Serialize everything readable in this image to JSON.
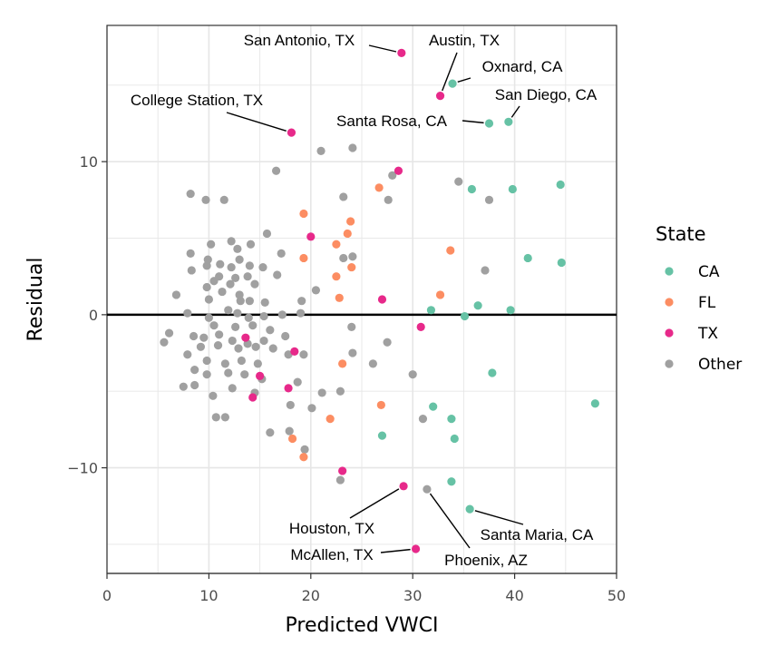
{
  "chart_data": {
    "type": "scatter",
    "title": "",
    "xlabel": "Predicted VWCI",
    "ylabel": "Residual",
    "xlim": [
      0,
      50
    ],
    "ylim": [
      -16.9,
      18.9
    ],
    "x_ticks": [
      0,
      10,
      20,
      30,
      40,
      50
    ],
    "y_ticks": [
      -10,
      0,
      10
    ],
    "x_tick_labels": [
      "0",
      "10",
      "20",
      "30",
      "40",
      "50"
    ],
    "y_tick_labels": [
      "−10",
      "0",
      "10"
    ],
    "grid": true,
    "reference_line_y": 0,
    "legend": {
      "title": "State",
      "position": "right",
      "entries": [
        {
          "name": "CA",
          "color": "#66c2a5"
        },
        {
          "name": "FL",
          "color": "#fc8d62"
        },
        {
          "name": "TX",
          "color": "#e7298a"
        },
        {
          "name": "Other",
          "color": "#a0a0a0"
        }
      ]
    },
    "series": [
      {
        "name": "CA",
        "color": "#66c2a5",
        "points": [
          [
            33.9,
            15.1
          ],
          [
            37.5,
            12.5
          ],
          [
            39.4,
            12.6
          ],
          [
            35.8,
            8.2
          ],
          [
            39.8,
            8.2
          ],
          [
            44.5,
            8.5
          ],
          [
            41.3,
            3.7
          ],
          [
            44.6,
            3.4
          ],
          [
            31.8,
            0.3
          ],
          [
            36.4,
            0.6
          ],
          [
            35.1,
            -0.1
          ],
          [
            39.6,
            0.3
          ],
          [
            37.8,
            -3.8
          ],
          [
            47.9,
            -5.8
          ],
          [
            32.0,
            -6.0
          ],
          [
            33.8,
            -6.8
          ],
          [
            27.0,
            -7.9
          ],
          [
            34.1,
            -8.1
          ],
          [
            33.8,
            -10.9
          ],
          [
            35.6,
            -12.7
          ]
        ]
      },
      {
        "name": "FL",
        "color": "#fc8d62",
        "points": [
          [
            19.3,
            6.6
          ],
          [
            23.9,
            6.1
          ],
          [
            23.6,
            5.3
          ],
          [
            22.5,
            4.6
          ],
          [
            33.7,
            4.2
          ],
          [
            19.3,
            3.7
          ],
          [
            24.0,
            3.1
          ],
          [
            22.5,
            2.5
          ],
          [
            26.7,
            8.3
          ],
          [
            22.8,
            1.1
          ],
          [
            32.7,
            1.3
          ],
          [
            23.1,
            -3.2
          ],
          [
            26.9,
            -5.9
          ],
          [
            21.9,
            -6.8
          ],
          [
            18.2,
            -8.1
          ],
          [
            19.3,
            -9.3
          ]
        ]
      },
      {
        "name": "TX",
        "color": "#e7298a",
        "points": [
          [
            28.9,
            17.1
          ],
          [
            32.7,
            14.3
          ],
          [
            18.1,
            11.9
          ],
          [
            28.6,
            9.4
          ],
          [
            20.0,
            5.1
          ],
          [
            27.0,
            1.0
          ],
          [
            30.8,
            -0.8
          ],
          [
            13.6,
            -1.5
          ],
          [
            18.4,
            -2.4
          ],
          [
            15.0,
            -4.0
          ],
          [
            17.8,
            -4.8
          ],
          [
            14.3,
            -5.4
          ],
          [
            23.1,
            -10.2
          ],
          [
            29.1,
            -11.2
          ],
          [
            30.3,
            -15.3
          ]
        ]
      },
      {
        "name": "Other",
        "color": "#a0a0a0",
        "points": [
          [
            21.0,
            10.7
          ],
          [
            24.1,
            10.9
          ],
          [
            16.6,
            9.4
          ],
          [
            28.0,
            9.1
          ],
          [
            8.2,
            7.9
          ],
          [
            9.7,
            7.5
          ],
          [
            11.5,
            7.5
          ],
          [
            23.2,
            7.7
          ],
          [
            27.6,
            7.5
          ],
          [
            34.5,
            8.7
          ],
          [
            37.5,
            7.5
          ],
          [
            15.7,
            5.3
          ],
          [
            12.2,
            4.8
          ],
          [
            10.2,
            4.6
          ],
          [
            12.8,
            4.3
          ],
          [
            14.1,
            4.6
          ],
          [
            17.1,
            4.0
          ],
          [
            8.2,
            4.0
          ],
          [
            9.9,
            3.6
          ],
          [
            13.0,
            3.6
          ],
          [
            11.1,
            3.3
          ],
          [
            9.8,
            3.2
          ],
          [
            12.2,
            3.1
          ],
          [
            14.0,
            3.2
          ],
          [
            15.3,
            3.1
          ],
          [
            8.3,
            2.9
          ],
          [
            11.0,
            2.5
          ],
          [
            12.6,
            2.4
          ],
          [
            13.8,
            2.5
          ],
          [
            16.7,
            2.6
          ],
          [
            10.5,
            2.2
          ],
          [
            12.1,
            2.0
          ],
          [
            14.5,
            2.0
          ],
          [
            9.8,
            1.8
          ],
          [
            11.3,
            1.5
          ],
          [
            13.0,
            1.3
          ],
          [
            6.8,
            1.3
          ],
          [
            10.0,
            1.0
          ],
          [
            13.1,
            0.9
          ],
          [
            14.0,
            0.9
          ],
          [
            15.5,
            0.8
          ],
          [
            19.1,
            0.9
          ],
          [
            20.5,
            1.6
          ],
          [
            24.1,
            3.8
          ],
          [
            23.2,
            3.7
          ],
          [
            37.1,
            2.9
          ],
          [
            7.9,
            0.1
          ],
          [
            10.0,
            -0.2
          ],
          [
            11.9,
            0.3
          ],
          [
            12.8,
            0.1
          ],
          [
            13.9,
            -0.2
          ],
          [
            15.4,
            -0.1
          ],
          [
            17.2,
            0.0
          ],
          [
            19.0,
            0.1
          ],
          [
            10.5,
            -0.7
          ],
          [
            12.6,
            -0.8
          ],
          [
            14.3,
            -0.7
          ],
          [
            16.0,
            -1.0
          ],
          [
            6.1,
            -1.2
          ],
          [
            8.5,
            -1.4
          ],
          [
            9.5,
            -1.5
          ],
          [
            11.0,
            -1.3
          ],
          [
            12.3,
            -1.7
          ],
          [
            13.8,
            -1.9
          ],
          [
            15.4,
            -1.7
          ],
          [
            17.5,
            -1.4
          ],
          [
            5.6,
            -1.8
          ],
          [
            9.2,
            -2.1
          ],
          [
            10.9,
            -2.0
          ],
          [
            12.9,
            -2.2
          ],
          [
            14.6,
            -2.1
          ],
          [
            16.3,
            -2.2
          ],
          [
            7.9,
            -2.6
          ],
          [
            9.8,
            -3.0
          ],
          [
            11.6,
            -3.2
          ],
          [
            13.2,
            -3.0
          ],
          [
            14.8,
            -3.2
          ],
          [
            17.8,
            -2.6
          ],
          [
            19.3,
            -2.6
          ],
          [
            24.0,
            -0.8
          ],
          [
            24.1,
            -2.5
          ],
          [
            27.5,
            -1.8
          ],
          [
            8.6,
            -3.6
          ],
          [
            9.8,
            -3.9
          ],
          [
            11.9,
            -3.8
          ],
          [
            13.5,
            -3.9
          ],
          [
            15.2,
            -4.2
          ],
          [
            18.7,
            -4.4
          ],
          [
            26.1,
            -3.2
          ],
          [
            30.0,
            -3.9
          ],
          [
            7.5,
            -4.7
          ],
          [
            8.6,
            -4.6
          ],
          [
            12.3,
            -4.8
          ],
          [
            10.4,
            -5.3
          ],
          [
            14.5,
            -5.1
          ],
          [
            18.0,
            -5.9
          ],
          [
            20.1,
            -6.1
          ],
          [
            21.1,
            -5.1
          ],
          [
            22.9,
            -5.0
          ],
          [
            10.7,
            -6.7
          ],
          [
            11.6,
            -6.7
          ],
          [
            16.0,
            -7.7
          ],
          [
            17.9,
            -7.6
          ],
          [
            19.4,
            -8.8
          ],
          [
            22.9,
            -10.8
          ],
          [
            31.0,
            -6.8
          ],
          [
            31.4,
            -11.4
          ]
        ]
      }
    ],
    "annotations": [
      {
        "text": "San Antonio, TX",
        "x": 28.9,
        "y": 17.1
      },
      {
        "text": "Austin, TX",
        "x": 32.7,
        "y": 14.3
      },
      {
        "text": "Oxnard, CA",
        "x": 33.9,
        "y": 15.1
      },
      {
        "text": "San Diego, CA",
        "x": 39.4,
        "y": 12.6
      },
      {
        "text": "College Station, TX",
        "x": 18.1,
        "y": 11.9
      },
      {
        "text": "Santa Rosa, CA",
        "x": 37.5,
        "y": 12.5
      },
      {
        "text": "Houston, TX",
        "x": 29.1,
        "y": -11.2
      },
      {
        "text": "Santa Maria, CA",
        "x": 35.6,
        "y": -12.7
      },
      {
        "text": "McAllen, TX",
        "x": 30.3,
        "y": -15.3
      },
      {
        "text": "Phoenix, AZ",
        "x": 31.4,
        "y": -11.4
      }
    ]
  }
}
